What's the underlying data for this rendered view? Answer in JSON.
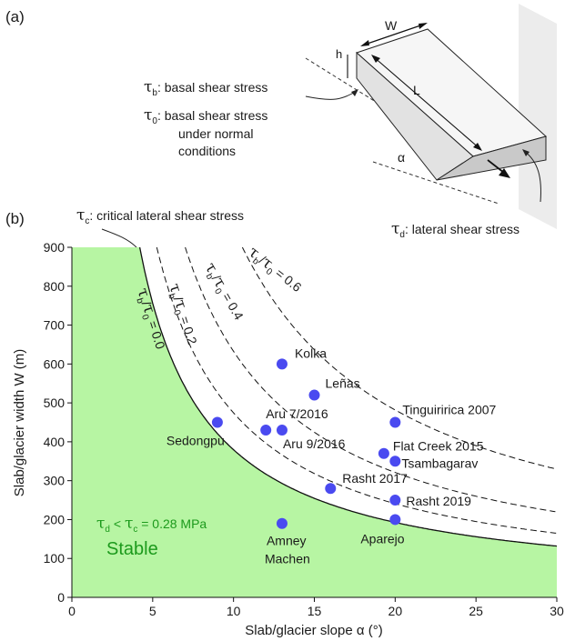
{
  "panel_a": {
    "label": "(a)",
    "dim_w": "W",
    "dim_h": "h",
    "dim_l": "L",
    "angle": "α",
    "tau_b_sym": "τ",
    "tau_b_sub": "b",
    "tau_b_text": ": basal shear stress",
    "tau_0_sym": "τ",
    "tau_0_sub": "0",
    "tau_0_text": ": basal shear stress",
    "tau_0_line2": "under normal",
    "tau_0_line3": "conditions",
    "tau_d_sym": "τ",
    "tau_d_sub": "d",
    "tau_d_text": ": lateral shear stress"
  },
  "panel_b": {
    "label": "(b)",
    "tau_c_sym": "τ",
    "tau_c_sub": "c",
    "tau_c_text": ": critical lateral shear stress",
    "stable_label": "Stable",
    "ineq_t1": "τ",
    "ineq_s1": "d",
    "ineq_mid": " < ",
    "ineq_t2": "τ",
    "ineq_s2": "c",
    "ineq_val": " = 0.28 MPa",
    "curve_labels": [
      {
        "tau": "τ",
        "b": "b",
        "slash": "/",
        "tau0": "τ",
        "zero": "0",
        "val": " = 0.0"
      },
      {
        "tau": "τ",
        "b": "b",
        "slash": "/",
        "tau0": "τ",
        "zero": "0",
        "val": " = 0.2"
      },
      {
        "tau": "τ",
        "b": "b",
        "slash": "/",
        "tau0": "τ",
        "zero": "0",
        "val": " = 0.4"
      },
      {
        "tau": "τ",
        "b": "b",
        "slash": "/",
        "tau0": "τ",
        "zero": "0",
        "val": " = 0.6"
      }
    ]
  },
  "chart_data": {
    "type": "scatter",
    "title": "",
    "xlabel": "Slab/glacier slope α (°)",
    "ylabel": "Slab/glacier width W (m)",
    "xlim": [
      0,
      30
    ],
    "ylim": [
      0,
      900
    ],
    "xticks": [
      0,
      5,
      10,
      15,
      20,
      25,
      30
    ],
    "yticks": [
      0,
      100,
      200,
      300,
      400,
      500,
      600,
      700,
      800,
      900
    ],
    "grid": false,
    "marker_color": "#4a4af0",
    "stable_fill": "#b7f5a3",
    "stable_text_color": "#1c9a1c",
    "points": [
      {
        "x": 13,
        "y": 600,
        "label": "Kolka"
      },
      {
        "x": 15,
        "y": 520,
        "label": "Leñas"
      },
      {
        "x": 20,
        "y": 450,
        "label": "Tinguiririca 2007"
      },
      {
        "x": 12,
        "y": 430,
        "label": "Aru 7/2016"
      },
      {
        "x": 13,
        "y": 430,
        "label": "Aru 9/2016"
      },
      {
        "x": 9,
        "y": 450,
        "label": "Sedongpu"
      },
      {
        "x": 19.3,
        "y": 370,
        "label": "Flat Creek 2015"
      },
      {
        "x": 20,
        "y": 350,
        "label": "Tsambagarav"
      },
      {
        "x": 16,
        "y": 280,
        "label": "Rasht 2017"
      },
      {
        "x": 20,
        "y": 250,
        "label": "Rasht 2019"
      },
      {
        "x": 20,
        "y": 200,
        "label": "Aparejo"
      },
      {
        "x": 13,
        "y": 190,
        "label": "Amney Machen"
      }
    ],
    "curves": [
      {
        "ratio": 0.0,
        "style": "solid"
      },
      {
        "ratio": 0.2,
        "style": "dashed"
      },
      {
        "ratio": 0.4,
        "style": "dashed"
      },
      {
        "ratio": 0.6,
        "style": "dashed"
      }
    ]
  }
}
